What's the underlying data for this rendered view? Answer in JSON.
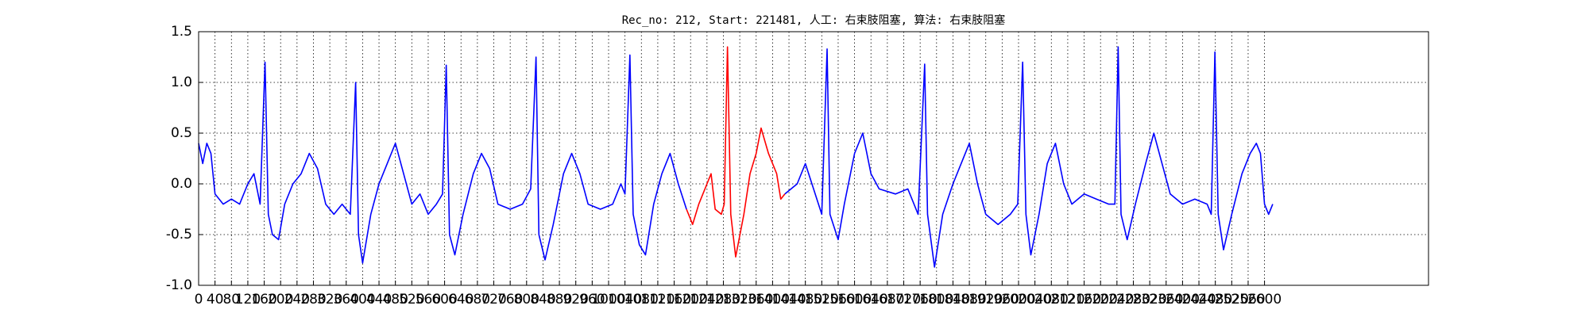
{
  "chart_data": {
    "type": "line",
    "title": "Rec_no: 212, Start: 221481, 人工: 右束肢阻塞, 算法: 右束肢阻塞",
    "xlim": [
      0,
      3000
    ],
    "ylim": [
      -1,
      1.5
    ],
    "grid": true,
    "xticks": [
      0,
      40,
      80,
      120,
      160,
      200,
      240,
      280,
      320,
      360,
      400,
      440,
      480,
      520,
      560,
      600,
      640,
      680,
      720,
      760,
      800,
      840,
      880,
      920,
      960,
      1000,
      1040,
      1080,
      1120,
      1160,
      1200,
      1240,
      1280,
      1320,
      1360,
      1400,
      1440,
      1480,
      1520,
      1560,
      1600,
      1640,
      1680,
      1720,
      1760,
      1800,
      1840,
      1880,
      1920,
      1960,
      2000,
      2040,
      2080,
      2120,
      2160,
      2200,
      2240,
      2280,
      2320,
      2360,
      2400,
      2440,
      2480,
      2520,
      2560,
      2600
    ],
    "yticks": [
      {
        "value": -1,
        "label": "-1.0"
      },
      -0.5,
      {
        "value": 0,
        "label": "0.0"
      },
      0.5,
      {
        "value": 1,
        "label": "1.0"
      },
      1.5
    ],
    "series": [
      {
        "color": "#0000ff",
        "x": [
          0,
          10,
          20,
          30,
          40,
          60,
          80,
          100,
          120,
          135,
          150,
          162,
          170,
          180,
          195,
          210,
          230,
          250,
          270,
          290,
          310,
          330,
          350,
          370,
          383,
          390,
          400,
          420,
          440,
          460,
          480,
          500,
          520,
          540,
          560,
          580,
          595,
          604,
          612,
          625,
          645,
          670,
          690,
          710,
          730,
          760,
          790,
          810,
          823,
          830,
          845,
          865,
          890,
          910,
          930,
          950,
          980,
          1010,
          1030,
          1040,
          1052,
          1060,
          1075,
          1090,
          1110,
          1130,
          1150,
          1170,
          1190
        ],
        "values": [
          0.4,
          0.2,
          0.4,
          0.3,
          -0.1,
          -0.2,
          -0.15,
          -0.2,
          0.0,
          0.1,
          -0.2,
          1.2,
          -0.3,
          -0.5,
          -0.55,
          -0.2,
          0.0,
          0.1,
          0.3,
          0.15,
          -0.2,
          -0.3,
          -0.2,
          -0.3,
          1.0,
          -0.5,
          -0.78,
          -0.3,
          0.0,
          0.2,
          0.4,
          0.1,
          -0.2,
          -0.1,
          -0.3,
          -0.2,
          -0.1,
          1.17,
          -0.5,
          -0.7,
          -0.3,
          0.1,
          0.3,
          0.15,
          -0.2,
          -0.25,
          -0.2,
          -0.05,
          1.25,
          -0.5,
          -0.75,
          -0.4,
          0.1,
          0.3,
          0.1,
          -0.2,
          -0.25,
          -0.2,
          0.0,
          -0.1,
          1.27,
          -0.3,
          -0.6,
          -0.7,
          -0.2,
          0.1,
          0.3,
          0.0,
          -0.25
        ]
      },
      {
        "color": "#ff0000",
        "x": [
          1190,
          1205,
          1220,
          1240,
          1250,
          1260,
          1275,
          1282,
          1290,
          1298,
          1310,
          1330,
          1345,
          1360,
          1372,
          1390,
          1410,
          1420,
          1430
        ],
        "values": [
          -0.25,
          -0.4,
          -0.2,
          0.0,
          0.1,
          -0.25,
          -0.3,
          -0.2,
          1.35,
          -0.3,
          -0.72,
          -0.3,
          0.1,
          0.3,
          0.55,
          0.3,
          0.1,
          -0.15,
          -0.1
        ]
      },
      {
        "color": "#0000ff",
        "x": [
          1430,
          1460,
          1480,
          1500,
          1520,
          1533,
          1540,
          1560,
          1575,
          1600,
          1620,
          1640,
          1660,
          1700,
          1730,
          1755,
          1771,
          1778,
          1795,
          1815,
          1840,
          1860,
          1880,
          1900,
          1920,
          1950,
          1980,
          1998,
          2010,
          2018,
          2030,
          2050,
          2070,
          2090,
          2110,
          2130,
          2160,
          2190,
          2220,
          2235,
          2243,
          2250,
          2265,
          2285,
          2310,
          2330,
          2350,
          2370,
          2400,
          2430,
          2460,
          2470,
          2479,
          2487,
          2500,
          2520,
          2545,
          2565,
          2580,
          2590,
          2600,
          2610,
          2620
        ],
        "values": [
          -0.1,
          0.0,
          0.2,
          -0.05,
          -0.3,
          1.33,
          -0.3,
          -0.55,
          -0.2,
          0.3,
          0.5,
          0.1,
          -0.05,
          -0.1,
          -0.05,
          -0.3,
          1.18,
          -0.3,
          -0.82,
          -0.3,
          0.0,
          0.2,
          0.4,
          0.0,
          -0.3,
          -0.4,
          -0.3,
          -0.2,
          1.2,
          -0.3,
          -0.7,
          -0.3,
          0.2,
          0.4,
          0.0,
          -0.2,
          -0.1,
          -0.15,
          -0.2,
          -0.2,
          1.35,
          -0.3,
          -0.55,
          -0.2,
          0.2,
          0.5,
          0.2,
          -0.1,
          -0.2,
          -0.15,
          -0.2,
          -0.3,
          1.3,
          -0.3,
          -0.65,
          -0.3,
          0.1,
          0.3,
          0.4,
          0.3,
          -0.2,
          -0.3,
          -0.2
        ]
      }
    ]
  }
}
